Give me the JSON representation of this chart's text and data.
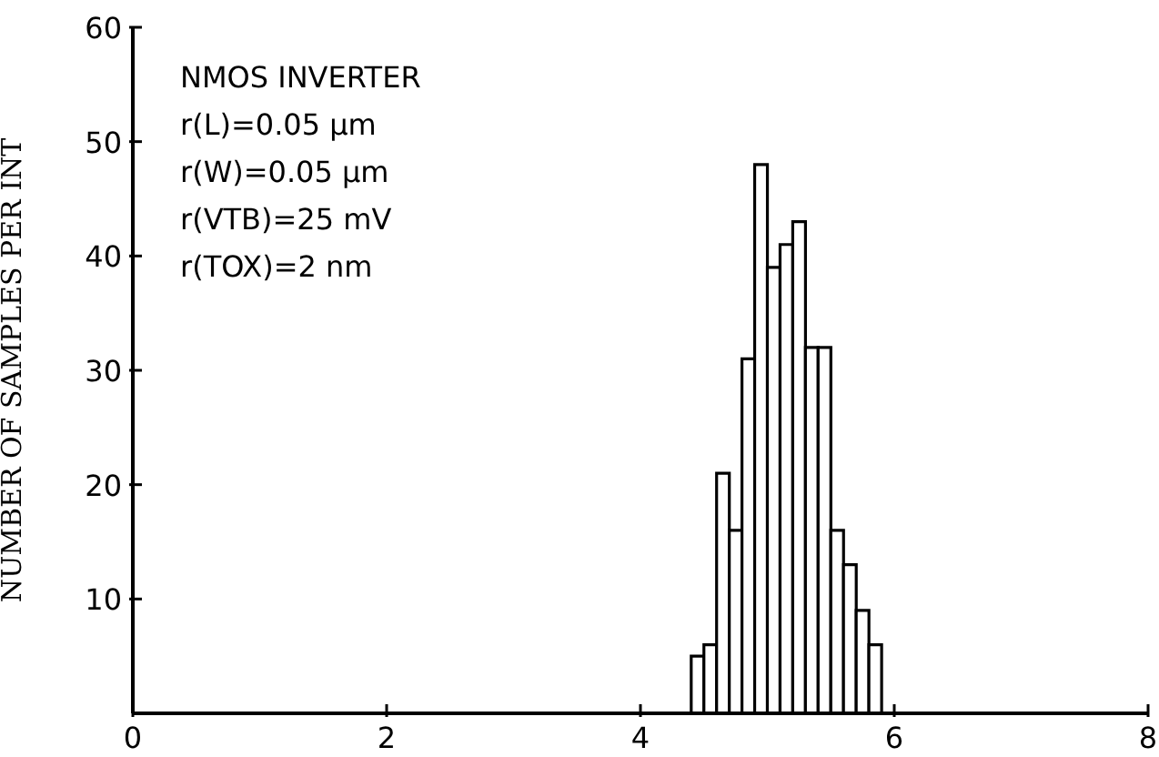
{
  "chart_data": {
    "type": "histogram",
    "ylabel": "NUMBER OF SAMPLES PER INT",
    "annotations": [
      "NMOS INVERTER",
      "r(L)=0.05 µm",
      "r(W)=0.05 µm",
      "r(VTB)=25 mV",
      "r(TOX)=2 nm"
    ],
    "bins": [
      4.4,
      4.5,
      4.6,
      4.7,
      4.8,
      4.9,
      5.0,
      5.1,
      5.2,
      5.3,
      5.4,
      5.5,
      5.6,
      5.7,
      5.8,
      5.9
    ],
    "values": [
      5,
      6,
      21,
      16,
      31,
      48,
      39,
      41,
      43,
      32,
      32,
      16,
      13,
      9,
      6
    ],
    "color": "#ffffff",
    "xlim": [
      0,
      8
    ],
    "xticks": [
      0,
      2,
      4,
      6,
      8
    ],
    "ylim": [
      0,
      60
    ],
    "yticks": [
      10,
      20,
      30,
      40,
      50,
      60
    ]
  }
}
